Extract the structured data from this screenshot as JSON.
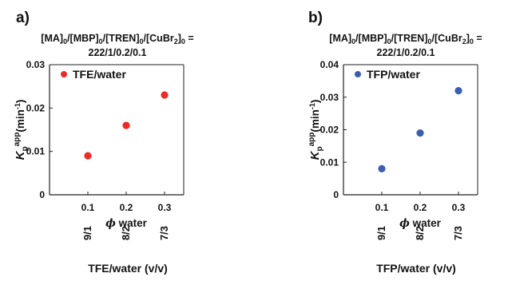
{
  "chart_data": [
    {
      "type": "scatter",
      "panel_label": "a)",
      "condition": {
        "line1": [
          "[MA]",
          "0",
          "/[MBP]",
          "0",
          "/[TREN]",
          "0",
          "/[CuBr",
          "2",
          "]",
          "0",
          " ="
        ],
        "line2": "222/1/0.2/0.1"
      },
      "series": [
        {
          "name": "TFE/water",
          "color": "#ee2a24",
          "x": [
            0.1,
            0.2,
            0.3
          ],
          "y": [
            0.009,
            0.016,
            0.023
          ]
        }
      ],
      "legend_position": "top-left",
      "xlabel": {
        "symbol": "ϕ",
        "text": " water"
      },
      "ylabel": {
        "K": "K",
        "sub": "p",
        "sup": "app",
        "unit": "(min",
        "unit_sup": "-1",
        "close": ")"
      },
      "xlim": [
        0,
        0.35
      ],
      "ylim": [
        0,
        0.03
      ],
      "x_ticks": [
        "0.1",
        "0.2",
        "0.3"
      ],
      "y_ticks": [
        "0",
        "0.01",
        "0.02",
        "0.03"
      ],
      "secondary_x_labels": [
        "9/1",
        "8/2",
        "7/3"
      ],
      "bottom_label": "TFE/water (v/v)",
      "grid": false
    },
    {
      "type": "scatter",
      "panel_label": "b)",
      "condition": {
        "line1": [
          "[MA]",
          "0",
          "/[MBP]",
          "0",
          "/[TREN]",
          "0",
          "/[CuBr",
          "2",
          "]",
          "0",
          " ="
        ],
        "line2": "222/1/0.2/0.1"
      },
      "series": [
        {
          "name": "TFP/water",
          "color": "#3a5fb0",
          "x": [
            0.1,
            0.2,
            0.3
          ],
          "y": [
            0.008,
            0.019,
            0.032
          ]
        }
      ],
      "legend_position": "top-left",
      "xlabel": {
        "symbol": "ϕ",
        "text": " water"
      },
      "ylabel": {
        "K": "K",
        "sub": "p",
        "sup": "app",
        "unit": "(min",
        "unit_sup": "-1",
        "close": ")"
      },
      "xlim": [
        0,
        0.35
      ],
      "ylim": [
        0,
        0.04
      ],
      "x_ticks": [
        "0.1",
        "0.2",
        "0.3"
      ],
      "y_ticks": [
        "0",
        "0.01",
        "0.02",
        "0.03",
        "0.04"
      ],
      "secondary_x_labels": [
        "9/1",
        "8/2",
        "7/3"
      ],
      "bottom_label": "TFP/water (v/v)",
      "grid": false
    }
  ]
}
